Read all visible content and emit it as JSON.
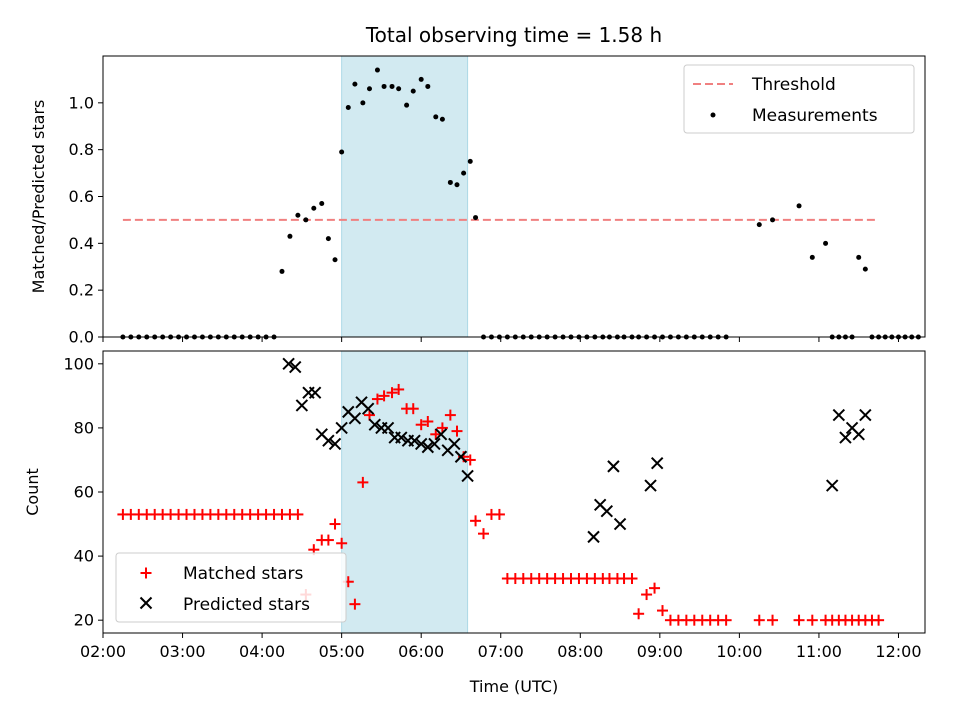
{
  "chart_data": [
    {
      "type": "scatter",
      "title": "Total observing time = 1.58 h",
      "xlabel": "",
      "ylabel": "Matched/Predicted stars",
      "xlim": [
        "02:00",
        "12:20"
      ],
      "ylim": [
        0,
        1.2
      ],
      "yticks": [
        "0.0",
        "0.2",
        "0.4",
        "0.6",
        "0.8",
        "1.0"
      ],
      "shaded_span": [
        "05:00",
        "06:35"
      ],
      "threshold": {
        "name": "Threshold",
        "value": 0.5,
        "x_range": [
          "02:15",
          "11:45"
        ],
        "color": "#f08080"
      },
      "legend": {
        "position": "top-right",
        "entries": [
          "Threshold",
          "Measurements"
        ]
      },
      "series": [
        {
          "name": "Measurements",
          "color": "#000000",
          "x": [
            "02:15",
            "02:21",
            "02:27",
            "02:33",
            "02:39",
            "02:45",
            "02:51",
            "02:57",
            "03:03",
            "03:09",
            "03:15",
            "03:21",
            "03:27",
            "03:33",
            "03:39",
            "03:45",
            "03:51",
            "03:57",
            "04:03",
            "04:09",
            "04:15",
            "04:21",
            "04:27",
            "04:33",
            "04:39",
            "04:45",
            "04:50",
            "04:55",
            "05:00",
            "05:05",
            "05:10",
            "05:16",
            "05:21",
            "05:27",
            "05:32",
            "05:38",
            "05:43",
            "05:49",
            "05:54",
            "06:00",
            "06:05",
            "06:11",
            "06:16",
            "06:22",
            "06:27",
            "06:32",
            "06:37",
            "06:41",
            "06:47",
            "06:53",
            "06:59",
            "07:05",
            "07:11",
            "07:17",
            "07:23",
            "07:29",
            "07:35",
            "07:41",
            "07:47",
            "07:53",
            "07:59",
            "08:05",
            "08:11",
            "08:17",
            "08:22",
            "08:28",
            "08:33",
            "08:39",
            "08:44",
            "08:50",
            "08:56",
            "09:02",
            "09:08",
            "09:14",
            "09:20",
            "09:26",
            "09:32",
            "09:38",
            "09:44",
            "09:50",
            "10:15",
            "10:25",
            "10:45",
            "10:55",
            "11:05",
            "11:10",
            "11:15",
            "11:20",
            "11:25",
            "11:30",
            "11:35",
            "11:40",
            "11:45",
            "11:50",
            "11:55",
            "12:00",
            "12:05",
            "12:10",
            "12:15"
          ],
          "y": [
            0,
            0,
            0,
            0,
            0,
            0,
            0,
            0,
            0,
            0,
            0,
            0,
            0,
            0,
            0,
            0,
            0,
            0,
            0,
            0,
            0.28,
            0.43,
            0.52,
            0.5,
            0.55,
            0.57,
            0.42,
            0.33,
            0.79,
            0.98,
            1.08,
            1.0,
            1.06,
            1.14,
            1.07,
            1.07,
            1.06,
            0.99,
            1.05,
            1.1,
            1.07,
            0.94,
            0.93,
            0.66,
            0.65,
            0.7,
            0.75,
            0.51,
            0,
            0,
            0,
            0,
            0,
            0,
            0,
            0,
            0,
            0,
            0,
            0,
            0,
            0,
            0,
            0,
            0,
            0,
            0,
            0,
            0,
            0,
            0,
            0,
            0,
            0,
            0,
            0,
            0,
            0,
            0,
            0,
            0.48,
            0.5,
            0.56,
            0.34,
            0.4,
            0,
            0,
            0,
            0,
            0.34,
            0.29,
            0,
            0,
            0,
            0,
            0,
            0,
            0,
            0
          ]
        }
      ]
    },
    {
      "type": "scatter",
      "title": "",
      "xlabel": "Time (UTC)",
      "ylabel": "Count",
      "xticks": [
        "02:00",
        "03:00",
        "04:00",
        "05:00",
        "06:00",
        "07:00",
        "08:00",
        "09:00",
        "10:00",
        "11:00",
        "12:00"
      ],
      "xlim": [
        "02:00",
        "12:20"
      ],
      "ylim": [
        16,
        104
      ],
      "yticks": [
        "20",
        "40",
        "60",
        "80",
        "100"
      ],
      "shaded_span": [
        "05:00",
        "06:35"
      ],
      "legend": {
        "position": "bottom-left",
        "entries": [
          "Matched stars",
          "Predicted stars"
        ]
      },
      "series": [
        {
          "name": "Matched stars",
          "color": "#ff0000",
          "marker": "+",
          "x": [
            "02:15",
            "02:21",
            "02:27",
            "02:33",
            "02:39",
            "02:45",
            "02:51",
            "02:57",
            "03:03",
            "03:09",
            "03:15",
            "03:21",
            "03:27",
            "03:33",
            "03:39",
            "03:45",
            "03:51",
            "03:57",
            "04:03",
            "04:09",
            "04:15",
            "04:21",
            "04:27",
            "04:33",
            "04:39",
            "04:45",
            "04:50",
            "04:55",
            "05:00",
            "05:05",
            "05:10",
            "05:16",
            "05:21",
            "05:27",
            "05:32",
            "05:38",
            "05:43",
            "05:49",
            "05:54",
            "06:00",
            "06:05",
            "06:11",
            "06:16",
            "06:22",
            "06:27",
            "06:32",
            "06:37",
            "06:41",
            "06:47",
            "06:53",
            "06:59",
            "07:05",
            "07:11",
            "07:17",
            "07:23",
            "07:29",
            "07:35",
            "07:41",
            "07:47",
            "07:53",
            "07:59",
            "08:05",
            "08:11",
            "08:17",
            "08:22",
            "08:28",
            "08:33",
            "08:39",
            "08:44",
            "08:50",
            "08:56",
            "09:02",
            "09:08",
            "09:14",
            "09:20",
            "09:26",
            "09:32",
            "09:38",
            "09:44",
            "09:50",
            "10:15",
            "10:25",
            "10:45",
            "10:55",
            "11:05",
            "11:10",
            "11:15",
            "11:20",
            "11:25",
            "11:30",
            "11:35",
            "11:40",
            "11:45"
          ],
          "y": [
            53,
            53,
            53,
            53,
            53,
            53,
            53,
            53,
            53,
            53,
            53,
            53,
            53,
            53,
            53,
            53,
            53,
            53,
            53,
            53,
            53,
            53,
            53,
            28,
            42,
            45,
            45,
            50,
            44,
            32,
            25,
            63,
            84,
            89,
            90,
            91,
            92,
            86,
            86,
            81,
            82,
            78,
            80,
            84,
            79,
            71,
            70,
            51,
            47,
            53,
            53,
            33,
            33,
            33,
            33,
            33,
            33,
            33,
            33,
            33,
            33,
            33,
            33,
            33,
            33,
            33,
            33,
            33,
            22,
            28,
            30,
            23,
            20,
            20,
            20,
            20,
            20,
            20,
            20,
            20,
            20,
            20,
            20,
            20,
            20,
            20,
            20,
            20,
            20,
            20,
            20,
            20,
            20
          ]
        },
        {
          "name": "Predicted stars",
          "color": "#000000",
          "marker": "x",
          "x": [
            "04:20",
            "04:25",
            "04:30",
            "04:35",
            "04:40",
            "04:45",
            "04:50",
            "04:55",
            "05:00",
            "05:05",
            "05:10",
            "05:15",
            "05:20",
            "05:25",
            "05:30",
            "05:35",
            "05:40",
            "05:45",
            "05:50",
            "05:55",
            "06:00",
            "06:05",
            "06:10",
            "06:15",
            "06:20",
            "06:25",
            "06:30",
            "06:35",
            "08:10",
            "08:15",
            "08:20",
            "08:25",
            "08:30",
            "08:53",
            "08:58",
            "11:10",
            "11:15",
            "11:20",
            "11:25",
            "11:30",
            "11:35"
          ],
          "y": [
            100,
            99,
            87,
            91,
            91,
            78,
            76,
            75,
            80,
            85,
            83,
            88,
            86,
            81,
            80,
            80,
            77,
            77,
            76,
            76,
            75,
            74,
            75,
            78,
            73,
            75,
            71,
            65,
            46,
            56,
            54,
            68,
            50,
            62,
            69,
            62,
            84,
            77,
            80,
            78,
            84
          ]
        }
      ]
    }
  ]
}
